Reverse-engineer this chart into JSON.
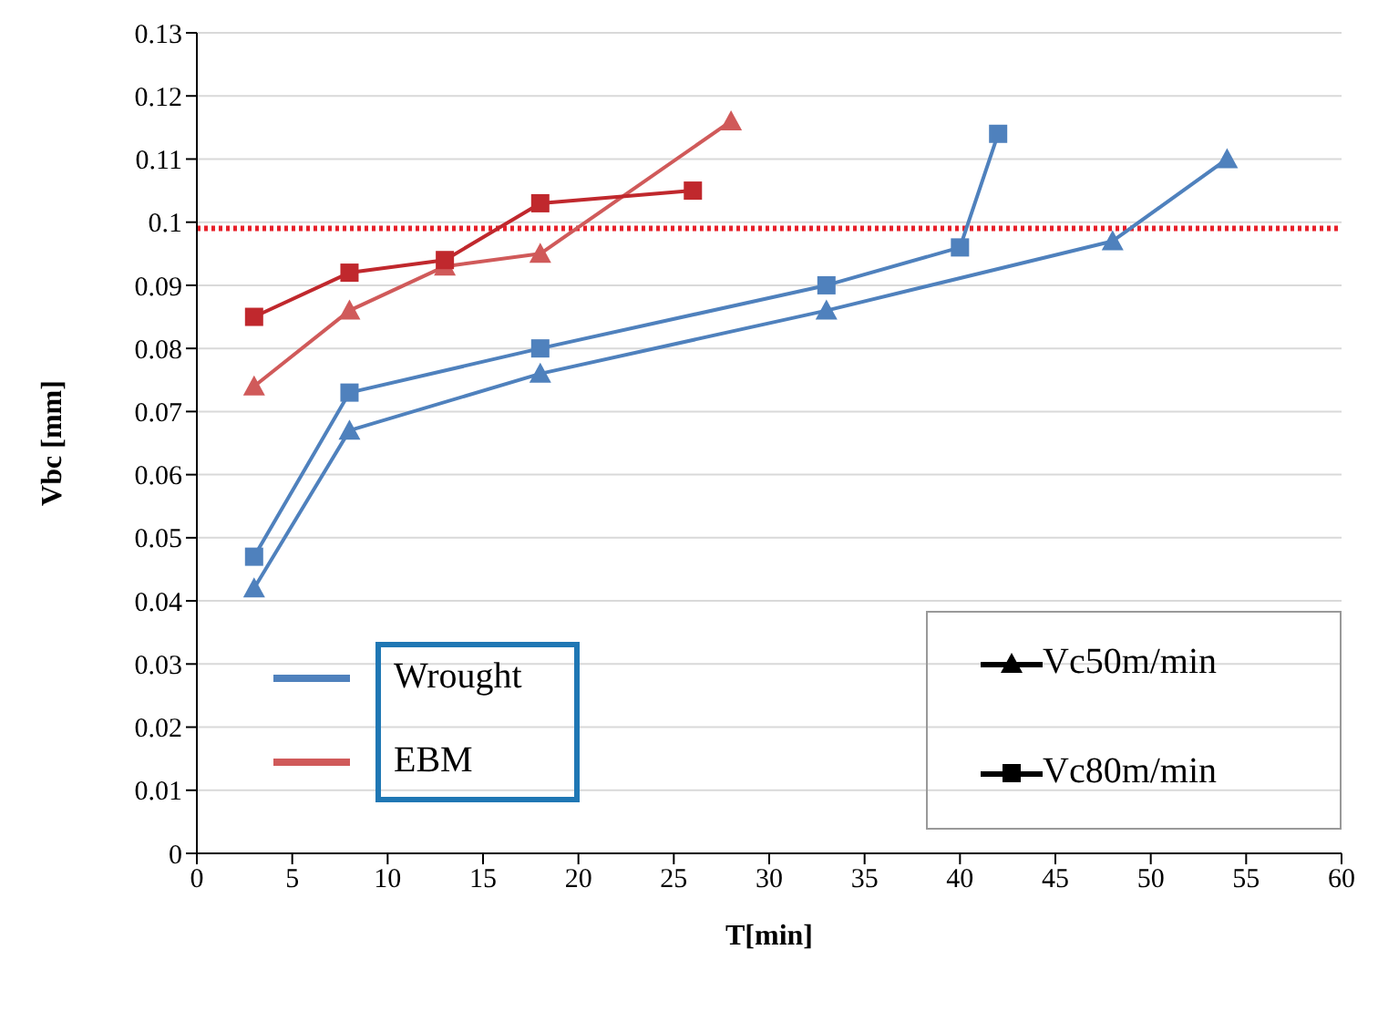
{
  "chart_data": {
    "type": "line",
    "xlabel": "T[min]",
    "ylabel": "Vbc [mm]",
    "xlim": [
      0,
      60
    ],
    "xticks": [
      0,
      5,
      10,
      15,
      20,
      25,
      30,
      35,
      40,
      45,
      50,
      55,
      60
    ],
    "ylim": [
      0,
      0.13
    ],
    "yticks": [
      0,
      0.01,
      0.02,
      0.03,
      0.04,
      0.05,
      0.06,
      0.07,
      0.08,
      0.09,
      0.1,
      0.11,
      0.12,
      0.13
    ],
    "grid": "y",
    "series": [
      {
        "color": "#4f81bd",
        "marker": "triangle",
        "x": [
          3,
          8,
          18,
          33,
          48,
          54
        ],
        "values": [
          0.042,
          0.067,
          0.076,
          0.086,
          0.097,
          0.11
        ]
      },
      {
        "color": "#4f81bd",
        "marker": "square",
        "x": [
          3,
          8,
          18,
          33,
          40,
          42
        ],
        "values": [
          0.047,
          0.073,
          0.08,
          0.09,
          0.096,
          0.114
        ]
      },
      {
        "color": "#d05a5a",
        "marker": "triangle",
        "x": [
          3,
          8,
          13,
          18,
          28
        ],
        "values": [
          0.074,
          0.086,
          0.093,
          0.095,
          0.116
        ]
      },
      {
        "color": "#c0282d",
        "marker": "square",
        "x": [
          3,
          8,
          13,
          18,
          26
        ],
        "values": [
          0.085,
          0.092,
          0.094,
          0.103,
          0.105
        ]
      }
    ],
    "ref_lines": [
      {
        "axis": "y",
        "value": 0.099,
        "color": "#e8202a",
        "line_style": "dotted"
      }
    ],
    "annotations": [
      "Wrought",
      "EBM",
      "Vc50m/min",
      "Vc80m/min"
    ]
  }
}
